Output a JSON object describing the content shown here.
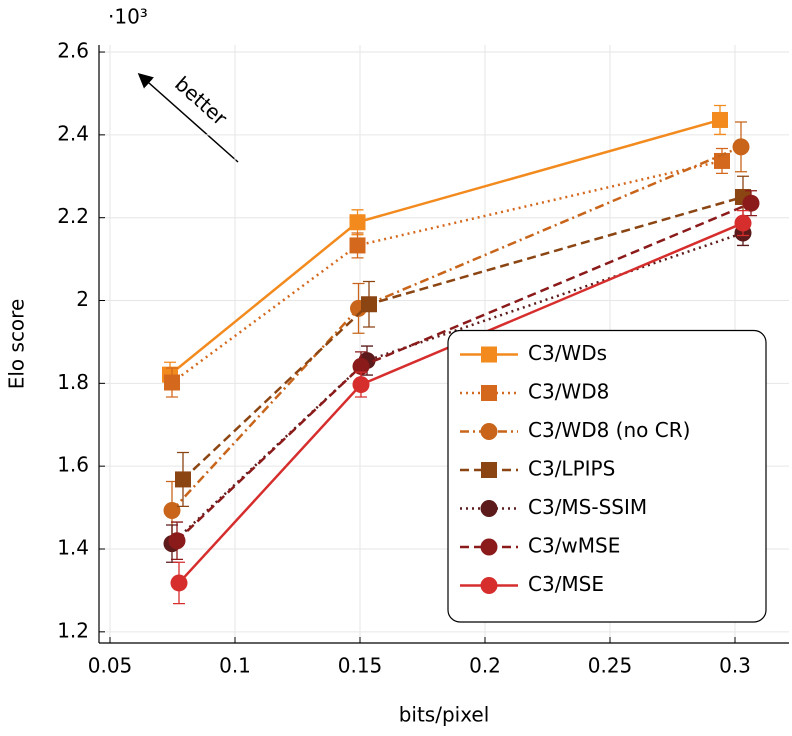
{
  "chart_data": {
    "type": "line",
    "xlabel": "bits/pixel",
    "ylabel": "Elo score",
    "y_multiplier": "·10³",
    "annotation": "better",
    "xlim": [
      0.0456,
      0.3216
    ],
    "ylim": [
      1.173,
      2.617
    ],
    "xticks": [
      0.05,
      0.1,
      0.15,
      0.2,
      0.25,
      0.3
    ],
    "yticks": [
      1.2,
      1.4,
      1.6,
      1.8,
      2,
      2.2,
      2.4,
      2.6
    ],
    "grid": true,
    "legend_loc": "lower right",
    "series": [
      {
        "name": "C3/WDs",
        "color": "#f28a1e",
        "linestyle": "solid",
        "marker": "square",
        "x": [
          0.074,
          0.149,
          0.294
        ],
        "values": [
          1.821,
          2.189,
          2.436
        ],
        "errors": [
          0.03,
          0.03,
          0.035
        ]
      },
      {
        "name": "C3/WD8",
        "color": "#d4691e",
        "linestyle": "dotted",
        "marker": "square",
        "x": [
          0.0748,
          0.149,
          0.2948
        ],
        "values": [
          1.802,
          2.133,
          2.337
        ],
        "errors": [
          0.035,
          0.03,
          0.03
        ]
      },
      {
        "name": "C3/WD8 (no CR)",
        "color": "#c8651a",
        "linestyle": "dashdot",
        "marker": "circle",
        "x": [
          0.0748,
          0.1494,
          0.3024
        ],
        "values": [
          1.493,
          1.981,
          2.371
        ],
        "errors": [
          0.07,
          0.06,
          0.06
        ]
      },
      {
        "name": "C3/LPIPS",
        "color": "#8b4513",
        "linestyle": "dashed",
        "marker": "square",
        "x": [
          0.0792,
          0.1536,
          0.3032
        ],
        "values": [
          1.568,
          1.991,
          2.25
        ],
        "errors": [
          0.065,
          0.055,
          0.05
        ]
      },
      {
        "name": "C3/MS-SSIM",
        "color": "#5c1a1a",
        "linestyle": "dotted",
        "marker": "circle",
        "x": [
          0.0748,
          0.1528,
          0.3032
        ],
        "values": [
          1.413,
          1.855,
          2.163
        ],
        "errors": [
          0.045,
          0.035,
          0.03
        ]
      },
      {
        "name": "C3/wMSE",
        "color": "#8b1a1a",
        "linestyle": "dashed",
        "marker": "circle",
        "x": [
          0.0768,
          0.1504,
          0.3064
        ],
        "values": [
          1.42,
          1.841,
          2.235
        ],
        "errors": [
          0.045,
          0.035,
          0.03
        ]
      },
      {
        "name": "C3/MSE",
        "color": "#d62d2d",
        "linestyle": "solid",
        "marker": "circle",
        "x": [
          0.0776,
          0.1504,
          0.3032
        ],
        "values": [
          1.318,
          1.797,
          2.187
        ],
        "errors": [
          0.05,
          0.03,
          0.03
        ]
      }
    ]
  }
}
